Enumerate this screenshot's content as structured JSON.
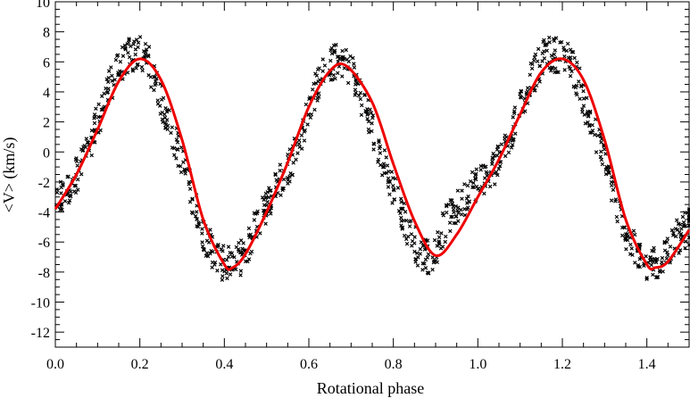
{
  "chart_data": {
    "type": "scatter",
    "title": "",
    "xlabel": "Rotational phase",
    "ylabel": "<V> (km/s)",
    "xlim": [
      0.0,
      1.5
    ],
    "ylim": [
      -13,
      10
    ],
    "grid": false,
    "legend": "none",
    "xticks": {
      "major": [
        0.0,
        0.2,
        0.4,
        0.6,
        0.8,
        1.0,
        1.2,
        1.4
      ],
      "labels": [
        "0.0",
        "0.2",
        "0.4",
        "0.6",
        "0.8",
        "1.0",
        "1.2",
        "1.4"
      ]
    },
    "yticks": {
      "major": [
        -12,
        -10,
        -8,
        -6,
        -4,
        -2,
        0,
        2,
        4,
        6,
        8,
        10
      ],
      "labels": [
        "-12",
        "-10",
        "-8",
        "-6",
        "-4",
        "-2",
        "0",
        "2",
        "4",
        "6",
        "8",
        "10"
      ]
    },
    "series": [
      {
        "kind": "scatter",
        "marker": "x",
        "color": "#000000",
        "x": [
          0.0,
          0.02,
          0.04,
          0.06,
          0.08,
          0.1,
          0.12,
          0.14,
          0.16,
          0.18,
          0.2,
          0.22,
          0.24,
          0.26,
          0.28,
          0.3,
          0.32,
          0.34,
          0.36,
          0.38,
          0.4,
          0.42,
          0.44,
          0.46,
          0.48,
          0.5,
          0.52,
          0.54,
          0.56,
          0.58,
          0.6,
          0.62,
          0.64,
          0.66,
          0.68,
          0.7,
          0.72,
          0.74,
          0.76,
          0.78,
          0.8,
          0.82,
          0.84,
          0.86,
          0.88,
          0.9,
          0.92,
          0.94,
          0.96,
          0.98,
          1.0,
          1.02,
          1.04,
          1.06,
          1.08,
          1.1,
          1.12,
          1.14,
          1.16,
          1.18,
          1.2,
          1.22,
          1.24,
          1.26,
          1.28,
          1.3,
          1.32,
          1.34,
          1.36,
          1.38,
          1.4,
          1.42,
          1.44,
          1.46,
          1.48,
          1.5
        ],
        "y": [
          -3.5,
          -3.0,
          -2.0,
          -1.0,
          0.5,
          2.0,
          3.8,
          5.0,
          6.0,
          6.5,
          6.5,
          6.0,
          4.5,
          2.5,
          1.0,
          -0.5,
          -2.5,
          -4.5,
          -6.0,
          -7.0,
          -7.5,
          -7.5,
          -7.0,
          -6.0,
          -4.5,
          -3.5,
          -2.5,
          -1.5,
          -0.5,
          1.0,
          2.8,
          4.5,
          5.5,
          6.0,
          6.0,
          5.5,
          4.0,
          2.5,
          0.5,
          -1.0,
          -2.5,
          -4.0,
          -5.5,
          -6.5,
          -7.0,
          -6.5,
          -5.0,
          -4.0,
          -3.5,
          -2.5,
          -2.0,
          -1.5,
          -1.0,
          0.0,
          1.5,
          3.0,
          4.5,
          5.5,
          6.5,
          6.5,
          6.5,
          6.0,
          4.5,
          2.5,
          1.0,
          -0.5,
          -2.5,
          -4.5,
          -6.0,
          -7.0,
          -7.5,
          -7.5,
          -7.0,
          -6.0,
          -5.5,
          -5.0
        ]
      },
      {
        "kind": "line",
        "color": "#ee0000",
        "x": [
          0.0,
          0.05,
          0.1,
          0.15,
          0.2,
          0.25,
          0.3,
          0.35,
          0.4,
          0.42,
          0.45,
          0.5,
          0.55,
          0.6,
          0.65,
          0.69,
          0.75,
          0.8,
          0.85,
          0.9,
          0.95,
          1.0,
          1.05,
          1.1,
          1.15,
          1.2,
          1.25,
          1.3,
          1.35,
          1.4,
          1.42,
          1.45,
          1.5
        ],
        "y": [
          -3.8,
          -1.5,
          1.5,
          4.7,
          6.2,
          4.8,
          0.8,
          -4.5,
          -7.5,
          -7.7,
          -6.8,
          -4.0,
          -0.7,
          3.0,
          5.4,
          5.7,
          3.3,
          -0.8,
          -4.6,
          -6.9,
          -5.5,
          -3.0,
          -0.5,
          2.5,
          5.3,
          6.2,
          4.8,
          0.8,
          -4.5,
          -7.5,
          -7.7,
          -7.3,
          -5.2
        ]
      }
    ]
  }
}
